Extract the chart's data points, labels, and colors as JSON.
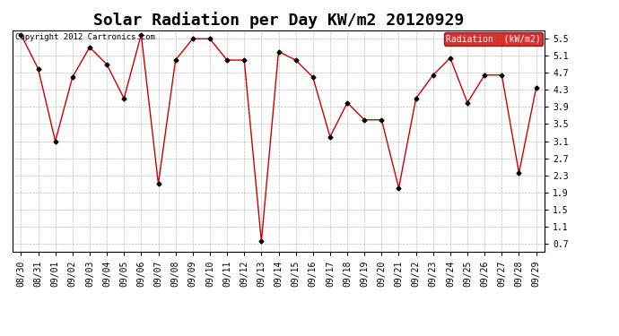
{
  "title": "Solar Radiation per Day KW/m2 20120929",
  "copyright": "Copyright 2012 Cartronics.com",
  "legend_label": "Radiation  (kW/m2)",
  "x_labels": [
    "08/30",
    "08/31",
    "09/01",
    "09/02",
    "09/03",
    "09/04",
    "09/05",
    "09/06",
    "09/07",
    "09/08",
    "09/09",
    "09/10",
    "09/11",
    "09/12",
    "09/13",
    "09/14",
    "09/15",
    "09/16",
    "09/17",
    "09/18",
    "09/19",
    "09/20",
    "09/21",
    "09/22",
    "09/23",
    "09/24",
    "09/25",
    "09/26",
    "09/27",
    "09/28",
    "09/29"
  ],
  "y_values": [
    5.6,
    4.8,
    3.1,
    4.6,
    5.3,
    4.9,
    4.1,
    5.6,
    2.1,
    5.0,
    5.5,
    5.5,
    5.0,
    5.0,
    0.75,
    5.2,
    5.0,
    4.6,
    3.2,
    4.0,
    3.6,
    3.6,
    2.0,
    4.1,
    4.65,
    5.05,
    4.0,
    4.65,
    4.65,
    2.35,
    4.35
  ],
  "y_ticks": [
    0.7,
    1.1,
    1.5,
    1.9,
    2.3,
    2.7,
    3.1,
    3.5,
    3.9,
    4.3,
    4.7,
    5.1,
    5.5
  ],
  "ylim": [
    0.5,
    5.7
  ],
  "line_color": "#cc0000",
  "marker_color": "black",
  "bg_color": "#ffffff",
  "plot_bg_color": "#ffffff",
  "grid_color": "#bbbbbb",
  "legend_bg": "#cc0000",
  "legend_text_color": "#ffffff",
  "title_fontsize": 13,
  "tick_fontsize": 7,
  "copyright_fontsize": 6.5
}
